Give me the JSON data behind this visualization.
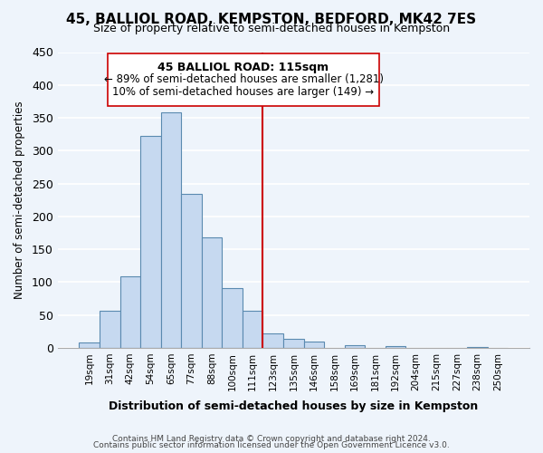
{
  "title": "45, BALLIOL ROAD, KEMPSTON, BEDFORD, MK42 7ES",
  "subtitle": "Size of property relative to semi-detached houses in Kempston",
  "xlabel": "Distribution of semi-detached houses by size in Kempston",
  "ylabel": "Number of semi-detached properties",
  "bar_labels": [
    "19sqm",
    "31sqm",
    "42sqm",
    "54sqm",
    "65sqm",
    "77sqm",
    "88sqm",
    "100sqm",
    "111sqm",
    "123sqm",
    "135sqm",
    "146sqm",
    "158sqm",
    "169sqm",
    "181sqm",
    "192sqm",
    "204sqm",
    "215sqm",
    "227sqm",
    "238sqm",
    "250sqm"
  ],
  "bar_values": [
    8,
    57,
    109,
    323,
    358,
    234,
    168,
    91,
    56,
    22,
    14,
    9,
    0,
    4,
    0,
    2,
    0,
    0,
    0,
    1,
    0
  ],
  "bar_color": "#c6d9f0",
  "bar_edge_color": "#5a8ab0",
  "annotation_title": "45 BALLIOL ROAD: 115sqm",
  "annotation_line1": "← 89% of semi-detached houses are smaller (1,281)",
  "annotation_line2": "10% of semi-detached houses are larger (149) →",
  "vline_color": "#cc0000",
  "vline_position": 8.5,
  "ylim": [
    0,
    450
  ],
  "yticks": [
    0,
    50,
    100,
    150,
    200,
    250,
    300,
    350,
    400,
    450
  ],
  "footer1": "Contains HM Land Registry data © Crown copyright and database right 2024.",
  "footer2": "Contains public sector information licensed under the Open Government Licence v3.0.",
  "background_color": "#eef4fb"
}
